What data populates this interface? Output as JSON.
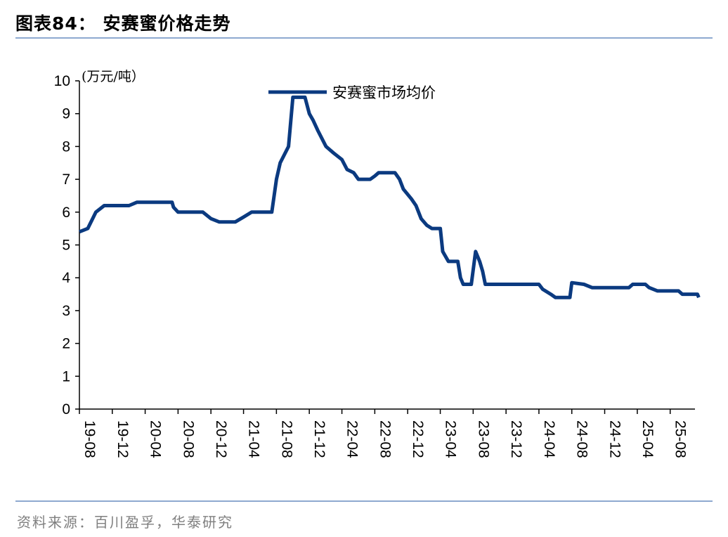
{
  "header": {
    "title": "图表84：  安赛蜜价格走势"
  },
  "footer": {
    "source": "资料来源：百川盈孚，华泰研究"
  },
  "chart_data": {
    "type": "line",
    "ylabel": "(万元/吨）",
    "ylim": [
      0,
      10
    ],
    "yticks": [
      "0",
      "1",
      "2",
      "3",
      "4",
      "5",
      "6",
      "7",
      "8",
      "9",
      "10"
    ],
    "xticks": [
      "19-08",
      "19-12",
      "20-04",
      "20-08",
      "20-12",
      "21-04",
      "21-08",
      "21-12",
      "22-04",
      "22-08",
      "22-12",
      "23-04",
      "23-08",
      "23-12",
      "24-04",
      "24-08",
      "24-12",
      "25-04",
      "25-08"
    ],
    "x_start": "2019-08",
    "x_end": "2025-11",
    "legend_position": "top-center",
    "colors": {
      "line": "#0b3a80",
      "axis": "#000000"
    },
    "series": [
      {
        "name": "安赛蜜市场均价",
        "points": [
          [
            "2019-08-01",
            5.4
          ],
          [
            "2019-09-01",
            5.5
          ],
          [
            "2019-10-01",
            6.0
          ],
          [
            "2019-11-01",
            6.2
          ],
          [
            "2020-02-01",
            6.2
          ],
          [
            "2020-03-01",
            6.3
          ],
          [
            "2020-07-10",
            6.3
          ],
          [
            "2020-07-15",
            6.15
          ],
          [
            "2020-08-01",
            6.0
          ],
          [
            "2020-11-01",
            6.0
          ],
          [
            "2020-12-01",
            5.8
          ],
          [
            "2021-01-01",
            5.7
          ],
          [
            "2021-03-01",
            5.7
          ],
          [
            "2021-04-01",
            5.85
          ],
          [
            "2021-05-01",
            6.0
          ],
          [
            "2021-07-15",
            6.0
          ],
          [
            "2021-08-01",
            7.0
          ],
          [
            "2021-08-15",
            7.5
          ],
          [
            "2021-09-15",
            8.0
          ],
          [
            "2021-10-01",
            9.5
          ],
          [
            "2021-11-15",
            9.5
          ],
          [
            "2021-12-01",
            9.0
          ],
          [
            "2021-12-15",
            8.8
          ],
          [
            "2022-01-01",
            8.5
          ],
          [
            "2022-02-01",
            8.0
          ],
          [
            "2022-03-01",
            7.8
          ],
          [
            "2022-04-01",
            7.6
          ],
          [
            "2022-04-20",
            7.3
          ],
          [
            "2022-05-15",
            7.2
          ],
          [
            "2022-06-01",
            7.0
          ],
          [
            "2022-07-15",
            7.0
          ],
          [
            "2022-08-01",
            7.1
          ],
          [
            "2022-08-15",
            7.2
          ],
          [
            "2022-10-15",
            7.2
          ],
          [
            "2022-11-01",
            7.0
          ],
          [
            "2022-11-15",
            6.7
          ],
          [
            "2022-12-15",
            6.4
          ],
          [
            "2023-01-01",
            6.2
          ],
          [
            "2023-01-20",
            5.8
          ],
          [
            "2023-02-10",
            5.6
          ],
          [
            "2023-03-01",
            5.5
          ],
          [
            "2023-04-01",
            5.5
          ],
          [
            "2023-04-10",
            4.8
          ],
          [
            "2023-05-01",
            4.5
          ],
          [
            "2023-06-05",
            4.5
          ],
          [
            "2023-06-15",
            4.0
          ],
          [
            "2023-06-25",
            3.8
          ],
          [
            "2023-07-25",
            3.8
          ],
          [
            "2023-08-10",
            4.8
          ],
          [
            "2023-08-25",
            4.5
          ],
          [
            "2023-09-05",
            4.2
          ],
          [
            "2023-09-15",
            3.8
          ],
          [
            "2024-04-01",
            3.8
          ],
          [
            "2024-04-15",
            3.65
          ],
          [
            "2024-05-15",
            3.5
          ],
          [
            "2024-06-01",
            3.4
          ],
          [
            "2024-07-25",
            3.4
          ],
          [
            "2024-08-01",
            3.85
          ],
          [
            "2024-09-15",
            3.8
          ],
          [
            "2024-10-15",
            3.7
          ],
          [
            "2025-03-01",
            3.7
          ],
          [
            "2025-03-15",
            3.8
          ],
          [
            "2025-05-01",
            3.8
          ],
          [
            "2025-05-15",
            3.7
          ],
          [
            "2025-06-15",
            3.6
          ],
          [
            "2025-09-01",
            3.6
          ],
          [
            "2025-09-15",
            3.5
          ],
          [
            "2025-11-10",
            3.5
          ],
          [
            "2025-11-15",
            3.4
          ]
        ]
      }
    ]
  }
}
